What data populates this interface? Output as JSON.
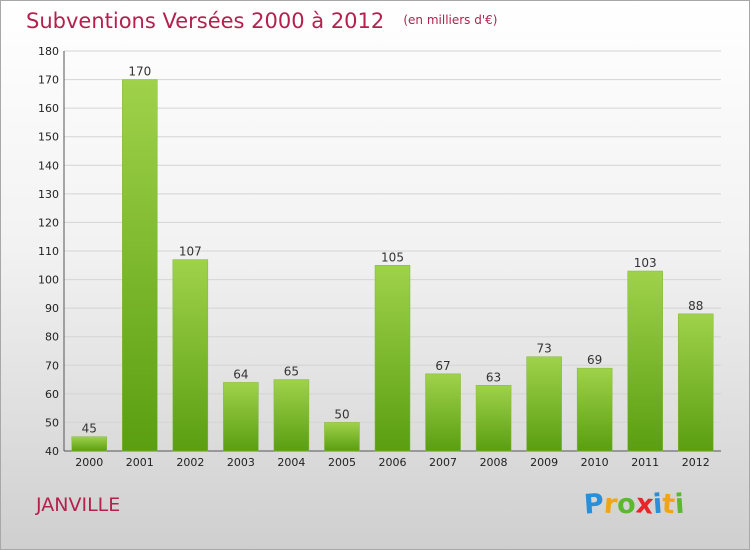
{
  "title": "Subventions Versées 2000 à 2012",
  "subtitle": "(en milliers d'€)",
  "city": "JANVILLE",
  "logo": {
    "letters": [
      "P",
      "r",
      "o",
      "x",
      "i",
      "t",
      "i"
    ],
    "colors": [
      "#2a8fd6",
      "#f2a417",
      "#5cb82f",
      "#e8262a",
      "#2a8fd6",
      "#f2a417",
      "#5cb82f"
    ]
  },
  "colors": {
    "title": "#b5204e",
    "bar_light": "#9fd24a",
    "bar_dark": "#5a9e12",
    "grid": "#d4d4d4",
    "axis_text": "#222222"
  },
  "chart_data": {
    "type": "bar",
    "categories": [
      "2000",
      "2001",
      "2002",
      "2003",
      "2004",
      "2005",
      "2006",
      "2007",
      "2008",
      "2009",
      "2010",
      "2011",
      "2012"
    ],
    "values": [
      45,
      170,
      107,
      64,
      65,
      50,
      105,
      67,
      63,
      73,
      69,
      103,
      88
    ],
    "data_labels": [
      "45",
      "170",
      "107",
      "64",
      "65",
      "50",
      "105",
      "67",
      "63",
      "73",
      "69",
      "103",
      "88"
    ],
    "yticks": [
      40,
      50,
      60,
      70,
      80,
      90,
      100,
      110,
      120,
      130,
      140,
      150,
      160,
      170,
      180
    ],
    "ylim": [
      40,
      180
    ],
    "grid": true,
    "legend": "none"
  }
}
